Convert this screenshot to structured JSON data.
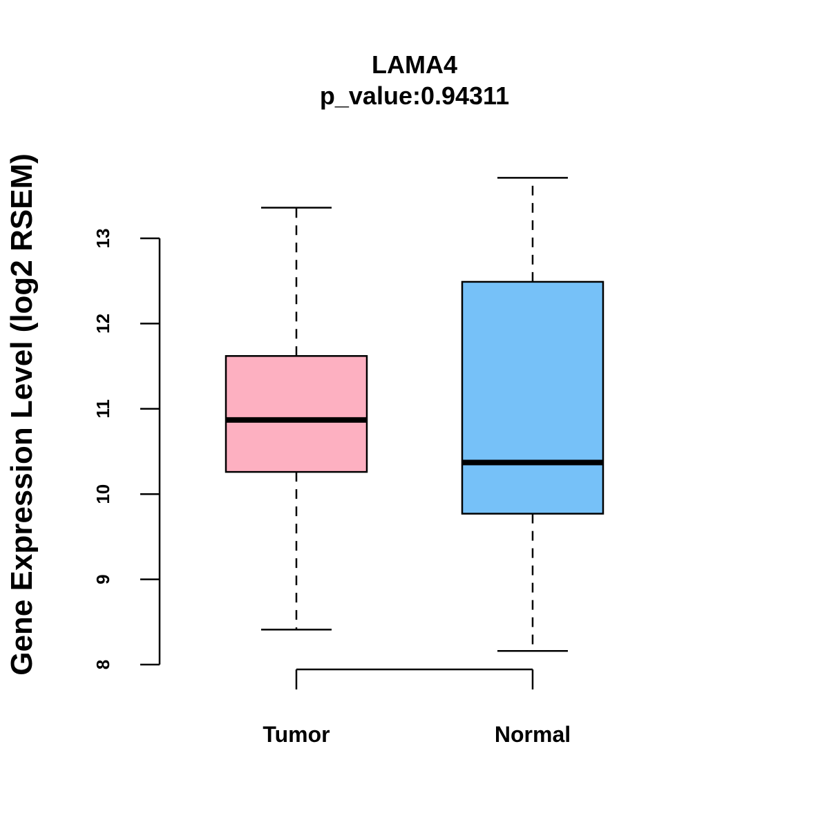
{
  "chart_data": {
    "type": "box",
    "title": "LAMA4",
    "subtitle": "p_value:0.94311",
    "xlabel": "",
    "ylabel": "Gene Expression Level (log2 RSEM)",
    "ylim": [
      8,
      13
    ],
    "yticks": [
      8,
      9,
      10,
      11,
      12,
      13
    ],
    "categories": [
      "Tumor",
      "Normal"
    ],
    "series": [
      {
        "name": "Tumor",
        "color": "#FDB0C1",
        "whisker_low": 8.41,
        "q1": 10.26,
        "median": 10.87,
        "q3": 11.62,
        "whisker_high": 13.36
      },
      {
        "name": "Normal",
        "color": "#76C1F8",
        "whisker_low": 8.16,
        "q1": 9.77,
        "median": 10.37,
        "q3": 12.49,
        "whisker_high": 13.71
      }
    ],
    "grid": false
  }
}
